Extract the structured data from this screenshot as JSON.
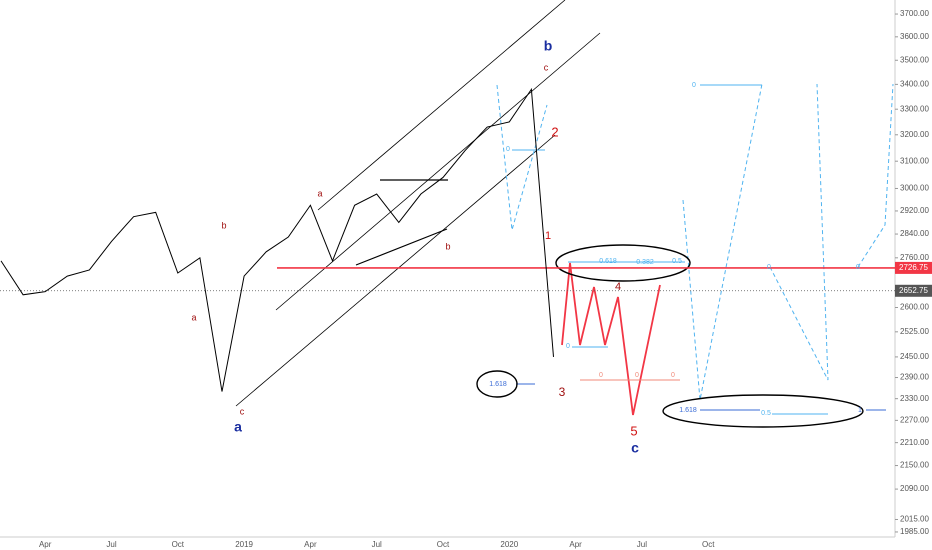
{
  "chart_data": {
    "type": "line",
    "categories": [
      null,
      null,
      "Apr",
      null,
      null,
      "Jul",
      null,
      null,
      "Oct",
      null,
      null,
      "2019",
      null,
      null,
      "Apr",
      null,
      null,
      "Jul",
      null,
      null,
      "Oct",
      null,
      null,
      "2020",
      null,
      null,
      "Apr",
      null,
      null,
      "Jul",
      null,
      null,
      "Oct",
      null,
      null,
      null,
      null,
      null,
      null,
      null
    ],
    "series": [
      {
        "color": "#000000",
        "values": [
          2750,
          2640,
          2650,
          2700,
          2720,
          2815,
          2900,
          2915,
          2710,
          2760,
          2350,
          2700,
          2780,
          2830,
          2940,
          2750,
          2940,
          2980,
          2880,
          2980,
          3040,
          3140,
          3230,
          3250,
          3380,
          2450,
          null,
          null,
          null,
          null,
          null,
          null,
          null,
          null,
          null,
          null,
          null,
          null,
          null,
          null
        ]
      }
    ],
    "log_scale": true,
    "ylim": [
      1973,
      3763
    ],
    "yticks": [
      {
        "value": 3700,
        "label": "3700.00"
      },
      {
        "value": 3600,
        "label": "3600.00"
      },
      {
        "value": 3500,
        "label": "3500.00"
      },
      {
        "value": 3400,
        "label": "3400.00"
      },
      {
        "value": 3300,
        "label": "3300.00"
      },
      {
        "value": 3200,
        "label": "3200.00"
      },
      {
        "value": 3100,
        "label": "3100.00"
      },
      {
        "value": 3000,
        "label": "3000.00"
      },
      {
        "value": 2920,
        "label": "2920.00"
      },
      {
        "value": 2840,
        "label": "2840.00"
      },
      {
        "value": 2760,
        "label": "2760.00"
      },
      {
        "value": 2600,
        "label": "2600.00"
      },
      {
        "value": 2525,
        "label": "2525.00"
      },
      {
        "value": 2450,
        "label": "2450.00"
      },
      {
        "value": 2390,
        "label": "2390.00"
      },
      {
        "value": 2330,
        "label": "2330.00"
      },
      {
        "value": 2270,
        "label": "2270.00"
      },
      {
        "value": 2210,
        "label": "2210.00"
      },
      {
        "value": 2150,
        "label": "2150.00"
      },
      {
        "value": 2090,
        "label": "2090.00"
      },
      {
        "value": 2015,
        "label": "2015.00"
      },
      {
        "value": 1985,
        "label": "1985.00"
      }
    ],
    "price_lines": [
      {
        "value": 2726.75,
        "color": "#f23645"
      },
      {
        "value": 2652.75,
        "color": "#555555"
      }
    ],
    "annotations": [
      "b",
      "c",
      "2",
      "1",
      "3",
      "4",
      "5",
      "c",
      "a",
      "b",
      "b",
      "a",
      "c",
      "a",
      "0.618",
      "0.382",
      "0.5",
      "0",
      "0",
      "0",
      "0",
      "0",
      "0",
      "0",
      "0",
      "1.618",
      "1.618",
      "0.5",
      "1"
    ]
  }
}
